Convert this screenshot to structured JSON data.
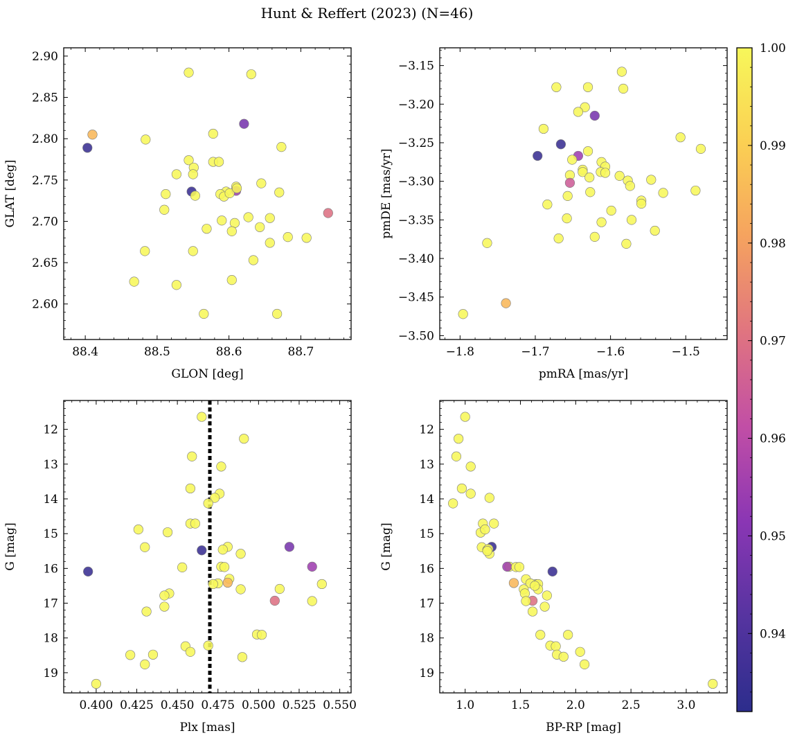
{
  "figure": {
    "title": "Hunt & Reffert (2023) (N=46)"
  },
  "colorbar": {
    "min": 0.932,
    "max": 1.0,
    "ticks": [
      0.94,
      0.95,
      0.96,
      0.97,
      0.98,
      0.99,
      1.0
    ],
    "tick_labels": [
      "0.94",
      "0.95",
      "0.96",
      "0.97",
      "0.98",
      "0.99",
      "1.00"
    ],
    "colormap": "plasma",
    "stops": [
      "#2c2d8c",
      "#5634a0",
      "#8a36b4",
      "#c14ea6",
      "#e07480",
      "#f5a25f",
      "#fbd053",
      "#f7f75a"
    ]
  },
  "chart_data": [
    {
      "type": "scatter",
      "xlabel": "GLON [deg]",
      "ylabel": "GLAT [deg]",
      "xlim": [
        88.37,
        88.77
      ],
      "ylim": [
        2.557,
        2.91
      ],
      "xticks": [
        88.4,
        88.5,
        88.6,
        88.7
      ],
      "xtick_labels": [
        "88.4",
        "88.5",
        "88.6",
        "88.7"
      ],
      "yticks": [
        2.6,
        2.65,
        2.7,
        2.75,
        2.8,
        2.85,
        2.9
      ],
      "ytick_labels": [
        "2.60",
        "2.65",
        "2.70",
        "2.75",
        "2.80",
        "2.85",
        "2.90"
      ],
      "points": [
        [
          88.544,
          2.88,
          1.0
        ],
        [
          88.631,
          2.878,
          1.0
        ],
        [
          88.621,
          2.818,
          0.948
        ],
        [
          88.578,
          2.806,
          1.0
        ],
        [
          88.41,
          2.805,
          0.985
        ],
        [
          88.484,
          2.799,
          1.0
        ],
        [
          88.403,
          2.789,
          0.935
        ],
        [
          88.673,
          2.79,
          1.0
        ],
        [
          88.544,
          2.774,
          1.0
        ],
        [
          88.578,
          2.772,
          1.0
        ],
        [
          88.586,
          2.772,
          1.0
        ],
        [
          88.551,
          2.765,
          1.0
        ],
        [
          88.527,
          2.757,
          1.0
        ],
        [
          88.55,
          2.757,
          1.0
        ],
        [
          88.645,
          2.746,
          1.0
        ],
        [
          88.61,
          2.742,
          1.0
        ],
        [
          88.596,
          2.736,
          1.0
        ],
        [
          88.61,
          2.737,
          0.955
        ],
        [
          88.548,
          2.736,
          0.935
        ],
        [
          88.67,
          2.735,
          1.0
        ],
        [
          88.512,
          2.733,
          1.0
        ],
        [
          88.588,
          2.733,
          1.0
        ],
        [
          88.553,
          2.731,
          1.0
        ],
        [
          88.593,
          2.73,
          1.0
        ],
        [
          88.738,
          2.71,
          0.97
        ],
        [
          88.51,
          2.714,
          1.0
        ],
        [
          88.627,
          2.705,
          1.0
        ],
        [
          88.657,
          2.704,
          1.0
        ],
        [
          88.59,
          2.701,
          1.0
        ],
        [
          88.608,
          2.698,
          1.0
        ],
        [
          88.643,
          2.693,
          1.0
        ],
        [
          88.569,
          2.691,
          1.0
        ],
        [
          88.604,
          2.688,
          1.0
        ],
        [
          88.682,
          2.681,
          1.0
        ],
        [
          88.708,
          2.68,
          1.0
        ],
        [
          88.657,
          2.674,
          1.0
        ],
        [
          88.55,
          2.664,
          1.0
        ],
        [
          88.483,
          2.664,
          1.0
        ],
        [
          88.634,
          2.653,
          1.0
        ],
        [
          88.604,
          2.629,
          1.0
        ],
        [
          88.468,
          2.627,
          1.0
        ],
        [
          88.527,
          2.623,
          1.0
        ],
        [
          88.565,
          2.588,
          1.0
        ],
        [
          88.667,
          2.588,
          1.0
        ],
        [
          88.601,
          2.734,
          1.0
        ],
        [
          88.611,
          2.74,
          1.0
        ]
      ]
    },
    {
      "type": "scatter",
      "xlabel": "pmRA [mas/yr]",
      "ylabel": "pmDE [mas/yr]",
      "xlim": [
        -1.827,
        -1.445
      ],
      "ylim": [
        -3.505,
        -3.127
      ],
      "xticks": [
        -1.8,
        -1.7,
        -1.6,
        -1.5
      ],
      "xtick_labels": [
        "−1.8",
        "−1.7",
        "−1.6",
        "−1.5"
      ],
      "yticks": [
        -3.5,
        -3.45,
        -3.4,
        -3.35,
        -3.3,
        -3.25,
        -3.2,
        -3.15
      ],
      "ytick_labels": [
        "−3.50",
        "−3.45",
        "−3.40",
        "−3.35",
        "−3.30",
        "−3.25",
        "−3.20",
        "−3.15"
      ],
      "points": [
        [
          -1.585,
          -3.158,
          1.0
        ],
        [
          -1.672,
          -3.178,
          1.0
        ],
        [
          -1.63,
          -3.178,
          1.0
        ],
        [
          -1.583,
          -3.18,
          1.0
        ],
        [
          -1.634,
          -3.204,
          1.0
        ],
        [
          -1.643,
          -3.21,
          1.0
        ],
        [
          -1.621,
          -3.215,
          0.948
        ],
        [
          -1.689,
          -3.232,
          1.0
        ],
        [
          -1.507,
          -3.243,
          1.0
        ],
        [
          -1.666,
          -3.252,
          0.935
        ],
        [
          -1.48,
          -3.258,
          1.0
        ],
        [
          -1.63,
          -3.261,
          1.0
        ],
        [
          -1.697,
          -3.267,
          0.935
        ],
        [
          -1.643,
          -3.267,
          0.955
        ],
        [
          -1.651,
          -3.272,
          1.0
        ],
        [
          -1.612,
          -3.275,
          1.0
        ],
        [
          -1.607,
          -3.281,
          1.0
        ],
        [
          -1.637,
          -3.285,
          1.0
        ],
        [
          -1.637,
          -3.288,
          1.0
        ],
        [
          -1.613,
          -3.288,
          1.0
        ],
        [
          -1.607,
          -3.289,
          1.0
        ],
        [
          -1.654,
          -3.292,
          1.0
        ],
        [
          -1.628,
          -3.295,
          1.0
        ],
        [
          -1.588,
          -3.293,
          1.0
        ],
        [
          -1.577,
          -3.299,
          1.0
        ],
        [
          -1.546,
          -3.298,
          1.0
        ],
        [
          -1.654,
          -3.302,
          0.965
        ],
        [
          -1.574,
          -3.306,
          1.0
        ],
        [
          -1.487,
          -3.312,
          1.0
        ],
        [
          -1.53,
          -3.315,
          1.0
        ],
        [
          -1.627,
          -3.314,
          1.0
        ],
        [
          -1.657,
          -3.319,
          1.0
        ],
        [
          -1.559,
          -3.325,
          1.0
        ],
        [
          -1.559,
          -3.329,
          1.0
        ],
        [
          -1.684,
          -3.33,
          1.0
        ],
        [
          -1.599,
          -3.338,
          1.0
        ],
        [
          -1.658,
          -3.348,
          1.0
        ],
        [
          -1.572,
          -3.35,
          1.0
        ],
        [
          -1.612,
          -3.353,
          1.0
        ],
        [
          -1.541,
          -3.364,
          1.0
        ],
        [
          -1.621,
          -3.372,
          1.0
        ],
        [
          -1.669,
          -3.374,
          1.0
        ],
        [
          -1.579,
          -3.381,
          1.0
        ],
        [
          -1.764,
          -3.38,
          1.0
        ],
        [
          -1.739,
          -3.458,
          0.985
        ],
        [
          -1.796,
          -3.472,
          1.0
        ]
      ]
    },
    {
      "type": "scatter",
      "xlabel": "Plx [mas]",
      "ylabel": "G [mag]",
      "xlim": [
        0.38,
        0.557
      ],
      "ylim": [
        19.58,
        11.17
      ],
      "y_inverted": true,
      "vline": 0.47,
      "xticks": [
        0.4,
        0.425,
        0.45,
        0.475,
        0.5,
        0.525,
        0.55
      ],
      "xtick_labels": [
        "0.400",
        "0.425",
        "0.450",
        "0.475",
        "0.500",
        "0.525",
        "0.550"
      ],
      "yticks": [
        12,
        13,
        14,
        15,
        16,
        17,
        18,
        19
      ],
      "ytick_labels": [
        "12",
        "13",
        "14",
        "15",
        "16",
        "17",
        "18",
        "19"
      ],
      "points": [
        [
          0.465,
          11.64,
          1.0
        ],
        [
          0.491,
          12.27,
          1.0
        ],
        [
          0.459,
          12.78,
          1.0
        ],
        [
          0.477,
          13.07,
          1.0
        ],
        [
          0.458,
          13.7,
          1.0
        ],
        [
          0.476,
          13.85,
          1.0
        ],
        [
          0.473,
          13.97,
          1.0
        ],
        [
          0.469,
          14.13,
          1.0
        ],
        [
          0.458,
          14.71,
          1.0
        ],
        [
          0.461,
          14.71,
          1.0
        ],
        [
          0.426,
          14.88,
          1.0
        ],
        [
          0.444,
          14.96,
          1.0
        ],
        [
          0.519,
          15.38,
          0.948
        ],
        [
          0.43,
          15.39,
          1.0
        ],
        [
          0.481,
          15.38,
          1.0
        ],
        [
          0.478,
          15.46,
          1.0
        ],
        [
          0.465,
          15.48,
          0.935
        ],
        [
          0.489,
          15.58,
          1.0
        ],
        [
          0.533,
          15.95,
          0.955
        ],
        [
          0.477,
          15.95,
          1.0
        ],
        [
          0.453,
          15.97,
          1.0
        ],
        [
          0.479,
          15.96,
          1.0
        ],
        [
          0.395,
          16.09,
          0.935
        ],
        [
          0.482,
          16.3,
          1.0
        ],
        [
          0.481,
          16.41,
          0.985
        ],
        [
          0.475,
          16.43,
          1.0
        ],
        [
          0.472,
          16.45,
          1.0
        ],
        [
          0.539,
          16.45,
          1.0
        ],
        [
          0.489,
          16.6,
          1.0
        ],
        [
          0.513,
          16.59,
          1.0
        ],
        [
          0.445,
          16.72,
          1.0
        ],
        [
          0.442,
          16.78,
          1.0
        ],
        [
          0.51,
          16.93,
          0.97
        ],
        [
          0.533,
          16.94,
          1.0
        ],
        [
          0.442,
          17.1,
          1.0
        ],
        [
          0.431,
          17.24,
          1.0
        ],
        [
          0.499,
          17.9,
          1.0
        ],
        [
          0.502,
          17.91,
          1.0
        ],
        [
          0.455,
          18.24,
          1.0
        ],
        [
          0.469,
          18.22,
          1.0
        ],
        [
          0.458,
          18.4,
          1.0
        ],
        [
          0.435,
          18.48,
          1.0
        ],
        [
          0.421,
          18.49,
          1.0
        ],
        [
          0.49,
          18.55,
          1.0
        ],
        [
          0.43,
          18.76,
          1.0
        ],
        [
          0.4,
          19.32,
          1.0
        ]
      ]
    },
    {
      "type": "scatter",
      "xlabel": "BP-RP [mag]",
      "ylabel": "G [mag]",
      "xlim": [
        0.77,
        3.37
      ],
      "ylim": [
        19.58,
        11.17
      ],
      "y_inverted": true,
      "xticks": [
        1.0,
        1.5,
        2.0,
        2.5,
        3.0
      ],
      "xtick_labels": [
        "1.0",
        "1.5",
        "2.0",
        "2.5",
        "3.0"
      ],
      "yticks": [
        12,
        13,
        14,
        15,
        16,
        17,
        18,
        19
      ],
      "ytick_labels": [
        "12",
        "13",
        "14",
        "15",
        "16",
        "17",
        "18",
        "19"
      ],
      "points": [
        [
          1.0,
          11.64,
          1.0
        ],
        [
          0.94,
          12.27,
          1.0
        ],
        [
          0.92,
          12.78,
          1.0
        ],
        [
          1.05,
          13.07,
          1.0
        ],
        [
          0.97,
          13.7,
          1.0
        ],
        [
          1.05,
          13.85,
          1.0
        ],
        [
          1.22,
          13.97,
          1.0
        ],
        [
          0.89,
          14.13,
          1.0
        ],
        [
          1.16,
          14.71,
          1.0
        ],
        [
          1.26,
          14.71,
          1.0
        ],
        [
          1.14,
          14.97,
          1.0
        ],
        [
          1.18,
          14.88,
          1.0
        ],
        [
          1.15,
          15.39,
          1.0
        ],
        [
          1.2,
          15.47,
          1.0
        ],
        [
          1.22,
          15.58,
          1.0
        ],
        [
          1.24,
          15.38,
          0.935
        ],
        [
          1.21,
          15.44,
          1.0
        ],
        [
          1.4,
          15.95,
          1.0
        ],
        [
          1.38,
          15.95,
          0.955
        ],
        [
          1.46,
          15.96,
          1.0
        ],
        [
          1.49,
          15.96,
          1.0
        ],
        [
          1.79,
          16.09,
          0.935
        ],
        [
          1.55,
          16.31,
          1.0
        ],
        [
          1.44,
          16.42,
          0.985
        ],
        [
          1.64,
          16.45,
          1.0
        ],
        [
          1.66,
          16.45,
          1.0
        ],
        [
          1.59,
          16.43,
          1.0
        ],
        [
          1.53,
          16.6,
          1.0
        ],
        [
          1.66,
          16.6,
          1.0
        ],
        [
          1.54,
          16.72,
          1.0
        ],
        [
          1.74,
          16.78,
          1.0
        ],
        [
          1.61,
          16.93,
          0.97
        ],
        [
          1.55,
          16.94,
          1.0
        ],
        [
          1.72,
          17.1,
          1.0
        ],
        [
          1.61,
          17.24,
          1.0
        ],
        [
          1.68,
          17.91,
          1.0
        ],
        [
          1.93,
          17.91,
          1.0
        ],
        [
          1.77,
          18.22,
          1.0
        ],
        [
          1.82,
          18.24,
          1.0
        ],
        [
          2.04,
          18.4,
          1.0
        ],
        [
          1.83,
          18.48,
          1.0
        ],
        [
          1.89,
          18.54,
          1.0
        ],
        [
          2.08,
          18.76,
          1.0
        ],
        [
          3.24,
          19.32,
          1.0
        ],
        [
          1.2,
          15.5,
          1.0
        ],
        [
          1.63,
          16.5,
          1.0
        ]
      ]
    }
  ]
}
